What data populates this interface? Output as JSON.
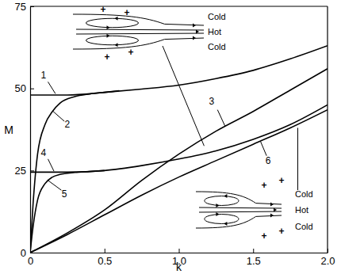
{
  "chart_data": {
    "type": "line",
    "x_label": "k",
    "y_label": "M",
    "xlim": [
      0,
      2
    ],
    "ylim": [
      0,
      75
    ],
    "xticks": [
      0,
      0.5,
      {
        "value": 1,
        "label": "1.0"
      },
      1.5,
      {
        "value": 2,
        "label": "2.0"
      }
    ],
    "yticks": [
      0,
      25,
      50,
      75
    ],
    "series": [
      {
        "name": "1",
        "color": "#000000",
        "x": [
          0,
          0.25,
          0.5,
          0.75,
          1.0,
          1.25,
          1.5,
          1.75,
          2.0
        ],
        "values": [
          48,
          48,
          48.8,
          49.8,
          51,
          53,
          55.5,
          59,
          63
        ]
      },
      {
        "name": "2",
        "color": "#000000",
        "x": [
          0,
          0.02,
          0.05,
          0.1,
          0.15,
          0.2,
          0.3,
          0.4,
          0.5,
          0.6
        ],
        "values": [
          0,
          15,
          30,
          39,
          43,
          45.5,
          47.5,
          48.3,
          48.8,
          49.3
        ]
      },
      {
        "name": "3",
        "color": "#000000",
        "x": [
          0,
          0.25,
          0.5,
          0.75,
          1.0,
          1.25,
          1.5,
          1.75,
          2.0
        ],
        "values": [
          0,
          6,
          13,
          22,
          30,
          37,
          43,
          49.5,
          56
        ]
      },
      {
        "name": "4",
        "color": "#000000",
        "x": [
          0,
          0.25,
          0.5,
          0.75,
          1.0,
          1.25,
          1.5,
          1.75,
          2.0
        ],
        "values": [
          24.5,
          24.5,
          25,
          26.5,
          28.5,
          31,
          34.5,
          39,
          45
        ]
      },
      {
        "name": "5",
        "color": "#000000",
        "x": [
          0,
          0.02,
          0.05,
          0.1,
          0.15,
          0.2,
          0.3,
          0.4,
          0.5
        ],
        "values": [
          0,
          8,
          16,
          21,
          23,
          23.8,
          24.4,
          24.7,
          25
        ]
      },
      {
        "name": "6",
        "color": "#000000",
        "x": [
          0,
          0.25,
          0.5,
          0.75,
          1.0,
          1.25,
          1.5,
          1.75,
          2.0
        ],
        "values": [
          0,
          5.5,
          11.5,
          17.5,
          23,
          28,
          33,
          38,
          43.5
        ]
      }
    ],
    "insets": [
      {
        "texts": [
          "Cold",
          "Hot",
          "Cold"
        ],
        "marks": [
          "+",
          "+",
          "+",
          "+"
        ]
      },
      {
        "texts": [
          "Cold",
          "Hot",
          "Cold"
        ],
        "marks": [
          "+",
          "+",
          "+",
          "+"
        ]
      }
    ]
  }
}
